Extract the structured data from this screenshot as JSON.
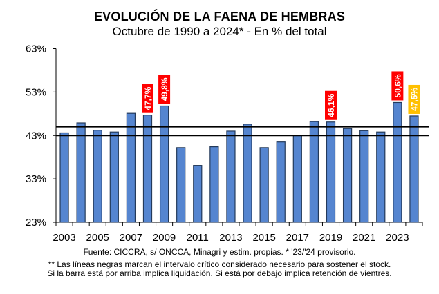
{
  "chart_data": {
    "type": "bar",
    "title": "EVOLUCIÓN DE LA FAENA DE HEMBRAS",
    "subtitle": "Octubre de 1990 a 2024* - En % del total",
    "xlabel": "",
    "ylabel": "",
    "categories": [
      "2003",
      "2004",
      "2005",
      "2006",
      "2007",
      "2008",
      "2009",
      "2010",
      "2011",
      "2012",
      "2013",
      "2014",
      "2015",
      "2016",
      "2017",
      "2018",
      "2019",
      "2020",
      "2021",
      "2022",
      "2023",
      "2024"
    ],
    "values": [
      43.6,
      45.9,
      44.2,
      43.8,
      48.1,
      47.7,
      49.8,
      40.2,
      36.1,
      40.4,
      44.0,
      45.6,
      40.2,
      41.5,
      43.0,
      46.2,
      46.1,
      44.6,
      44.1,
      43.8,
      50.6,
      47.5
    ],
    "ylim": [
      23,
      63
    ],
    "yticks": [
      63,
      53,
      43,
      33,
      23
    ],
    "ytick_labels": [
      "63%",
      "53%",
      "43%",
      "33%",
      "23%"
    ],
    "xtick_labels": [
      "2003",
      "2005",
      "2007",
      "2009",
      "2011",
      "2013",
      "2015",
      "2017",
      "2019",
      "2021",
      "2023"
    ],
    "reference_lines": [
      {
        "name": "critical-interval-upper",
        "value": 45
      },
      {
        "name": "critical-interval-lower",
        "value": 43
      }
    ],
    "data_labels": [
      {
        "category": "2008",
        "text": "47,7%",
        "color": "#ff0000",
        "text_color": "#ffffff"
      },
      {
        "category": "2009",
        "text": "49,8%",
        "color": "#ff0000",
        "text_color": "#ffffff"
      },
      {
        "category": "2019",
        "text": "46,1%",
        "color": "#ff0000",
        "text_color": "#ffffff"
      },
      {
        "category": "2023",
        "text": "50,6%",
        "color": "#ff0000",
        "text_color": "#ffffff"
      },
      {
        "category": "2024",
        "text": "47,5%",
        "color": "#ffc000",
        "text_color": "#000000"
      }
    ],
    "bar_color": "#5585d0",
    "bar_edge_color": "#243a5a",
    "reference_line_color": "#000000",
    "grid": false,
    "legend": "none"
  },
  "footer": {
    "source": "Fuente: CICCRA, s/ ONCCA, Minagri y estim. propias. * '23/'24  provisorio.",
    "note_line1": "** Las líneas negras marcan el intervalo crítico considerado necesario para sostener el stock.",
    "note_line2": "Si la barra está por arriba implica liquidación. Si está por debajo implica retención de vientres."
  }
}
